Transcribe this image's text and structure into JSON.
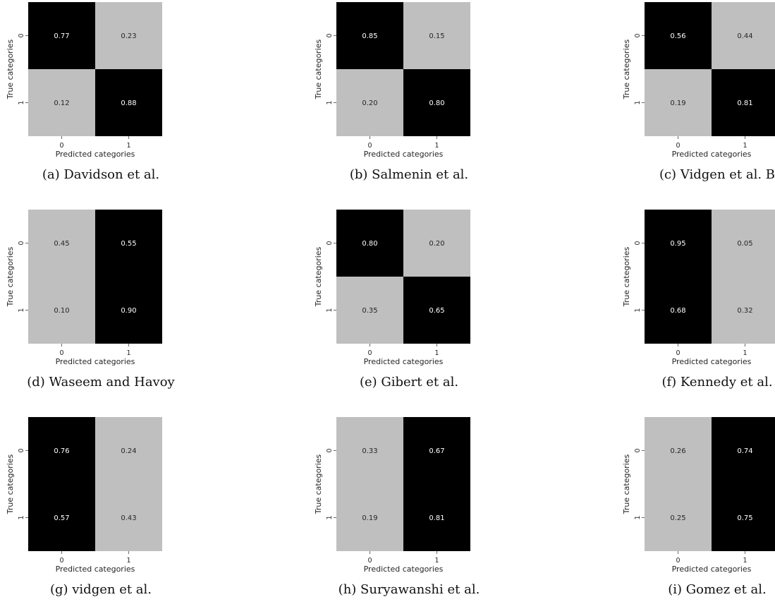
{
  "chart_data": [
    {
      "type": "heatmap",
      "caption": "(a) Davidson et al.",
      "values": [
        [
          "0.77",
          "0.23"
        ],
        [
          "0.12",
          "0.88"
        ]
      ],
      "x_ticks": [
        "0",
        "1"
      ],
      "y_ticks": [
        "0",
        "1"
      ],
      "xlabel": "Predicted categories",
      "ylabel": "True categories",
      "colormap": "greys"
    },
    {
      "type": "heatmap",
      "caption": "(b) Salmenin et al.",
      "values": [
        [
          "0.85",
          "0.15"
        ],
        [
          "0.20",
          "0.80"
        ]
      ],
      "x_ticks": [
        "0",
        "1"
      ],
      "y_ticks": [
        "0",
        "1"
      ],
      "xlabel": "Predicted categories",
      "ylabel": "True categories",
      "colormap": "greys"
    },
    {
      "type": "heatmap",
      "caption": "(c) Vidgen et al. B",
      "values": [
        [
          "0.56",
          "0.44"
        ],
        [
          "0.19",
          "0.81"
        ]
      ],
      "x_ticks": [
        "0",
        "1"
      ],
      "y_ticks": [
        "0",
        "1"
      ],
      "xlabel": "Predicted categories",
      "ylabel": "True categories",
      "colormap": "greys"
    },
    {
      "type": "heatmap",
      "caption": "(d) Waseem and Havoy",
      "values": [
        [
          "0.45",
          "0.55"
        ],
        [
          "0.10",
          "0.90"
        ]
      ],
      "x_ticks": [
        "0",
        "1"
      ],
      "y_ticks": [
        "0",
        "1"
      ],
      "xlabel": "Predicted categories",
      "ylabel": "True categories",
      "colormap": "greys"
    },
    {
      "type": "heatmap",
      "caption": "(e) Gibert et al.",
      "values": [
        [
          "0.80",
          "0.20"
        ],
        [
          "0.35",
          "0.65"
        ]
      ],
      "x_ticks": [
        "0",
        "1"
      ],
      "y_ticks": [
        "0",
        "1"
      ],
      "xlabel": "Predicted categories",
      "ylabel": "True categories",
      "colormap": "greys"
    },
    {
      "type": "heatmap",
      "caption": "(f) Kennedy et al.",
      "values": [
        [
          "0.95",
          "0.05"
        ],
        [
          "0.68",
          "0.32"
        ]
      ],
      "x_ticks": [
        "0",
        "1"
      ],
      "y_ticks": [
        "0",
        "1"
      ],
      "xlabel": "Predicted categories",
      "ylabel": "True categories",
      "colormap": "greys"
    },
    {
      "type": "heatmap",
      "caption": "(g) vidgen et al.",
      "values": [
        [
          "0.76",
          "0.24"
        ],
        [
          "0.57",
          "0.43"
        ]
      ],
      "x_ticks": [
        "0",
        "1"
      ],
      "y_ticks": [
        "0",
        "1"
      ],
      "xlabel": "Predicted categories",
      "ylabel": "True categories",
      "colormap": "greys"
    },
    {
      "type": "heatmap",
      "caption": "(h) Suryawanshi et al.",
      "values": [
        [
          "0.33",
          "0.67"
        ],
        [
          "0.19",
          "0.81"
        ]
      ],
      "x_ticks": [
        "0",
        "1"
      ],
      "y_ticks": [
        "0",
        "1"
      ],
      "xlabel": "Predicted categories",
      "ylabel": "True categories",
      "colormap": "greys"
    },
    {
      "type": "heatmap",
      "caption": "(i) Gomez et al.",
      "values": [
        [
          "0.26",
          "0.74"
        ],
        [
          "0.25",
          "0.75"
        ]
      ],
      "x_ticks": [
        "0",
        "1"
      ],
      "y_ticks": [
        "0",
        "1"
      ],
      "xlabel": "Predicted categories",
      "ylabel": "True categories",
      "colormap": "greys"
    }
  ]
}
